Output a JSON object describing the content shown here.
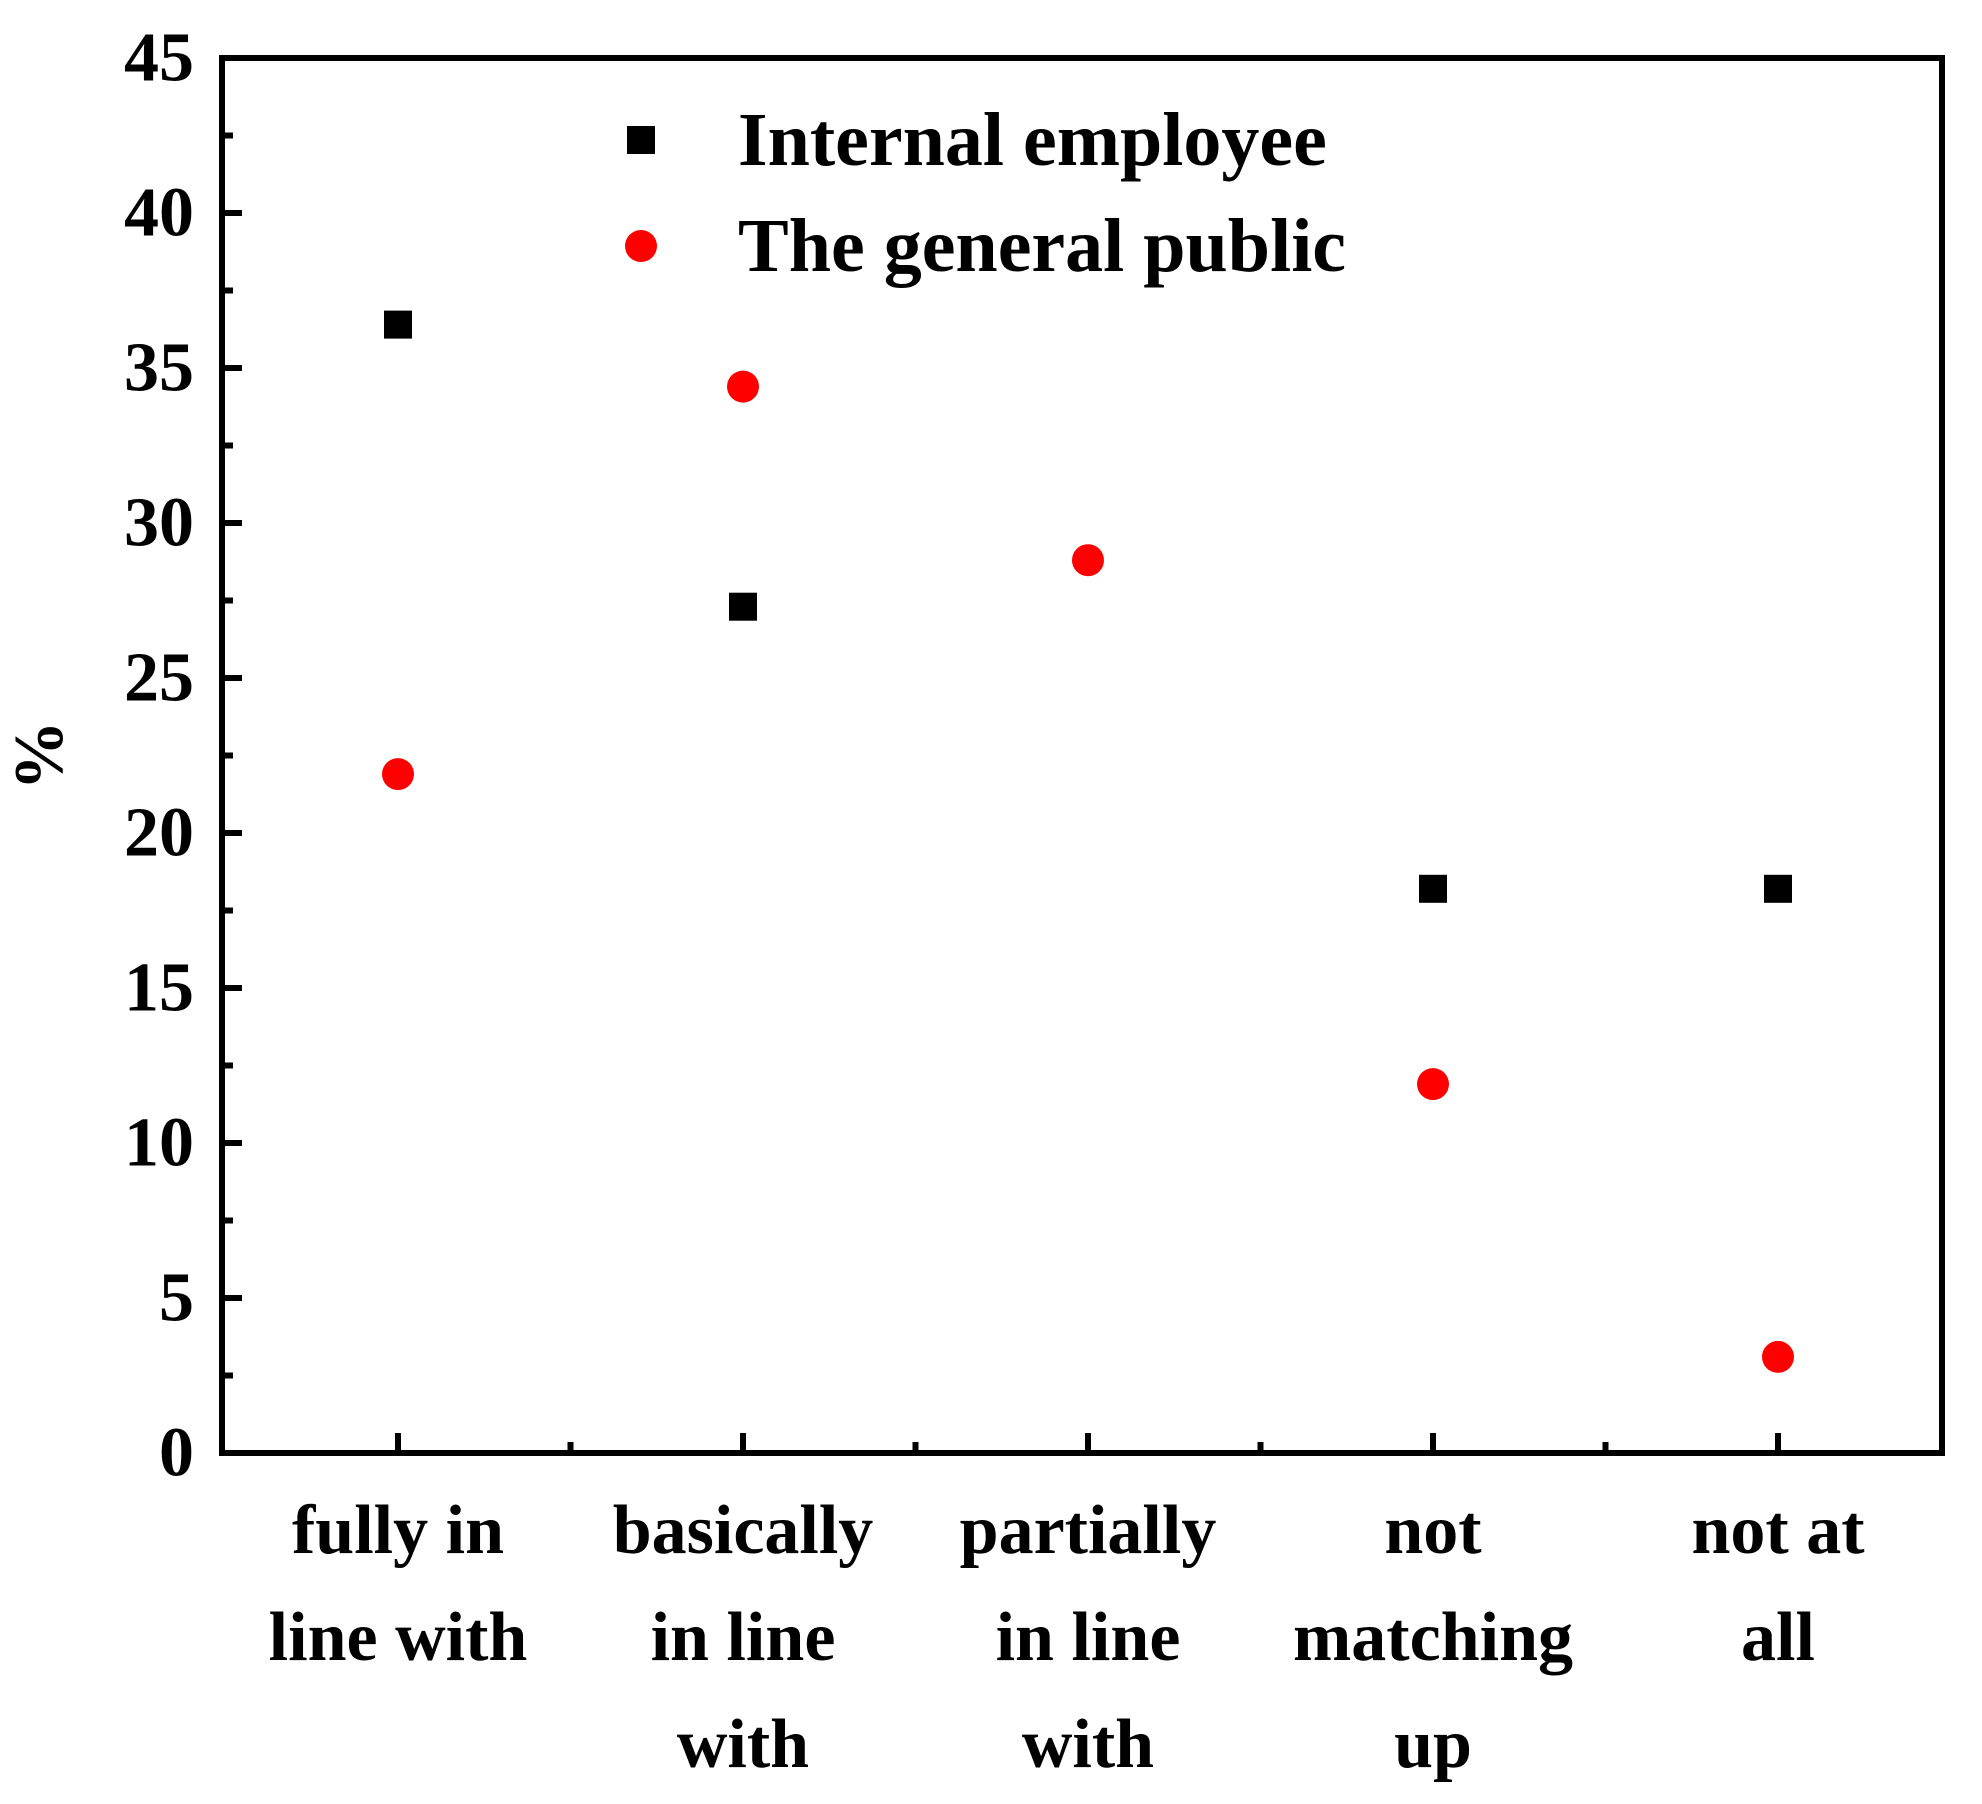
{
  "chart_data": {
    "type": "scatter",
    "title": "",
    "xlabel": "",
    "ylabel": "%",
    "ylim": [
      0,
      45
    ],
    "y_major_ticks": [
      0,
      5,
      10,
      15,
      20,
      25,
      30,
      35,
      40,
      45
    ],
    "grid": false,
    "legend_position": "top-center",
    "categories": [
      [
        "fully in",
        "line with"
      ],
      [
        "basically",
        "in line",
        "with"
      ],
      [
        "partially",
        "in line",
        "with"
      ],
      [
        "not",
        "matching",
        "up"
      ],
      [
        "not at",
        "all"
      ]
    ],
    "series": [
      {
        "name": "Internal employee",
        "marker": "square",
        "color": "#000000",
        "values": [
          36.4,
          27.3,
          null,
          18.2,
          18.2
        ]
      },
      {
        "name": "The general public",
        "marker": "circle",
        "color": "#ff0000",
        "values": [
          21.9,
          34.4,
          28.8,
          11.9,
          3.1
        ]
      }
    ]
  }
}
